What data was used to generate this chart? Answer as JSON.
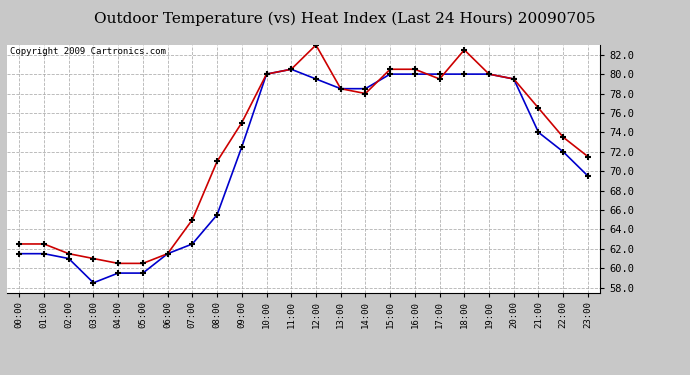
{
  "title": "Outdoor Temperature (vs) Heat Index (Last 24 Hours) 20090705",
  "copyright_text": "Copyright 2009 Cartronics.com",
  "hours": [
    "00:00",
    "01:00",
    "02:00",
    "03:00",
    "04:00",
    "05:00",
    "06:00",
    "07:00",
    "08:00",
    "09:00",
    "10:00",
    "11:00",
    "12:00",
    "13:00",
    "14:00",
    "15:00",
    "16:00",
    "17:00",
    "18:00",
    "19:00",
    "20:00",
    "21:00",
    "22:00",
    "23:00"
  ],
  "temp": [
    61.5,
    61.5,
    61.0,
    58.5,
    59.5,
    59.5,
    61.5,
    62.5,
    65.5,
    72.5,
    80.0,
    80.5,
    79.5,
    78.5,
    78.5,
    80.0,
    80.0,
    80.0,
    80.0,
    80.0,
    79.5,
    74.0,
    72.0,
    69.5
  ],
  "heat_index": [
    62.5,
    62.5,
    61.5,
    61.0,
    60.5,
    60.5,
    61.5,
    65.0,
    71.0,
    75.0,
    80.0,
    80.5,
    83.0,
    78.5,
    78.0,
    80.5,
    80.5,
    79.5,
    82.5,
    80.0,
    79.5,
    76.5,
    73.5,
    71.5
  ],
  "temp_color": "#0000cc",
  "heat_index_color": "#cc0000",
  "ylim": [
    57.5,
    83.0
  ],
  "yticks": [
    58.0,
    60.0,
    62.0,
    64.0,
    66.0,
    68.0,
    70.0,
    72.0,
    74.0,
    76.0,
    78.0,
    80.0,
    82.0
  ],
  "bg_color": "#c8c8c8",
  "plot_bg_color": "#ffffff",
  "grid_color": "#aaaaaa",
  "title_fontsize": 11,
  "copyright_fontsize": 6.5
}
